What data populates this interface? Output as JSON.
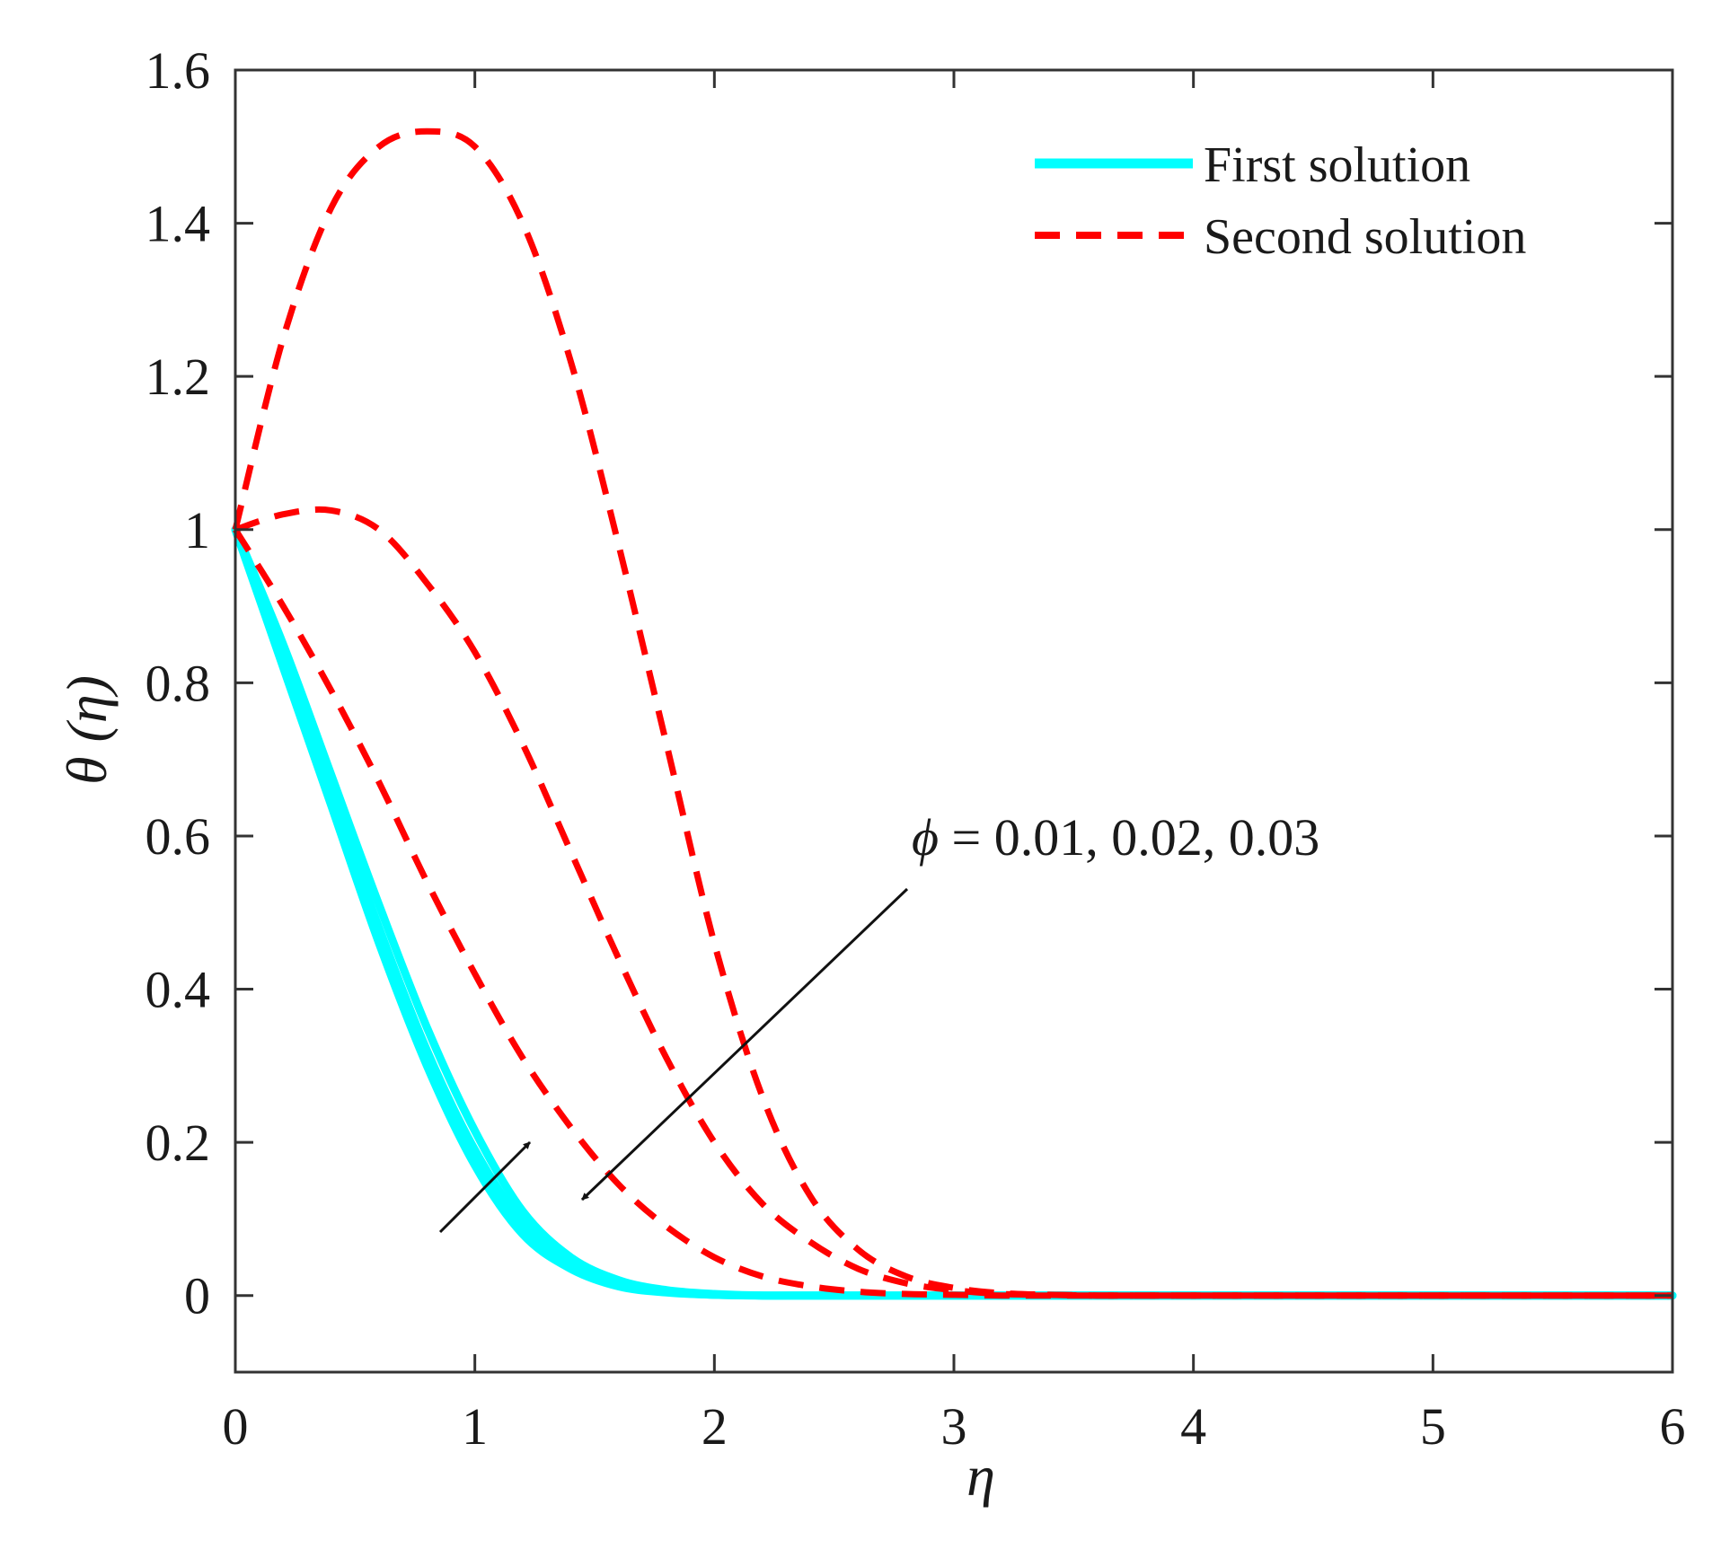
{
  "chart_data": {
    "type": "line",
    "xlabel": "η",
    "ylabel": "θ (η)",
    "xlim": [
      0,
      6
    ],
    "ylim": [
      -0.1,
      1.6
    ],
    "x_ticks": [
      "0",
      "1",
      "2",
      "3",
      "4",
      "5",
      "6"
    ],
    "y_ticks": [
      "0",
      "0.2",
      "0.4",
      "0.6",
      "0.8",
      "1",
      "1.2",
      "1.4",
      "1.6"
    ],
    "grid": false,
    "legend": {
      "position": "top-right",
      "entries": [
        {
          "label": "First solution",
          "color": "#00ffff",
          "style": "solid"
        },
        {
          "label": "Second solution",
          "color": "#ff0000",
          "style": "dashed"
        }
      ]
    },
    "annotation": {
      "symbol": "ϕ",
      "text": " = 0.01, 0.02, 0.03"
    },
    "x": [
      0,
      0.2,
      0.4,
      0.6,
      0.8,
      1.0,
      1.2,
      1.4,
      1.6,
      1.8,
      2.0,
      2.2,
      2.4,
      2.6,
      2.8,
      3.0,
      3.2,
      3.4,
      3.6,
      3.8,
      4.0,
      4.5,
      5.0,
      5.5,
      6.0
    ],
    "series": [
      {
        "name": "First solution, ϕ = 0.01",
        "solution": "first",
        "color": "#00ffff",
        "values": [
          1.0,
          0.82,
          0.64,
          0.46,
          0.3,
          0.17,
          0.08,
          0.035,
          0.012,
          0.004,
          0.001,
          0,
          0,
          0,
          0,
          0,
          0,
          0,
          0,
          0,
          0,
          0,
          0,
          0,
          0
        ]
      },
      {
        "name": "First solution, ϕ = 0.02",
        "solution": "first",
        "color": "#00ffff",
        "values": [
          1.0,
          0.83,
          0.655,
          0.48,
          0.32,
          0.19,
          0.095,
          0.042,
          0.016,
          0.005,
          0.001,
          0,
          0,
          0,
          0,
          0,
          0,
          0,
          0,
          0,
          0,
          0,
          0,
          0,
          0
        ]
      },
      {
        "name": "First solution, ϕ = 0.03",
        "solution": "first",
        "color": "#00ffff",
        "values": [
          1.0,
          0.85,
          0.68,
          0.51,
          0.35,
          0.215,
          0.11,
          0.05,
          0.02,
          0.007,
          0.002,
          0,
          0,
          0,
          0,
          0,
          0,
          0,
          0,
          0,
          0,
          0,
          0,
          0,
          0
        ]
      },
      {
        "name": "Second solution, ϕ = 0.01",
        "solution": "second",
        "color": "#ff0000",
        "values": [
          1.0,
          1.25,
          1.42,
          1.5,
          1.52,
          1.5,
          1.4,
          1.22,
          0.98,
          0.72,
          0.46,
          0.26,
          0.13,
          0.06,
          0.025,
          0.01,
          0.003,
          0.001,
          0,
          0,
          0,
          0,
          0,
          0,
          0
        ]
      },
      {
        "name": "Second solution, ϕ = 0.02",
        "solution": "second",
        "color": "#ff0000",
        "values": [
          1.0,
          1.02,
          1.025,
          1.0,
          0.93,
          0.84,
          0.72,
          0.58,
          0.44,
          0.31,
          0.2,
          0.12,
          0.07,
          0.035,
          0.016,
          0.007,
          0.002,
          0.001,
          0,
          0,
          0,
          0,
          0,
          0,
          0
        ]
      },
      {
        "name": "Second solution, ϕ = 0.03",
        "solution": "second",
        "color": "#ff0000",
        "values": [
          1.0,
          0.9,
          0.79,
          0.67,
          0.54,
          0.42,
          0.31,
          0.22,
          0.145,
          0.09,
          0.05,
          0.025,
          0.012,
          0.005,
          0.002,
          0.001,
          0,
          0,
          0,
          0,
          0,
          0,
          0,
          0,
          0
        ]
      }
    ]
  }
}
